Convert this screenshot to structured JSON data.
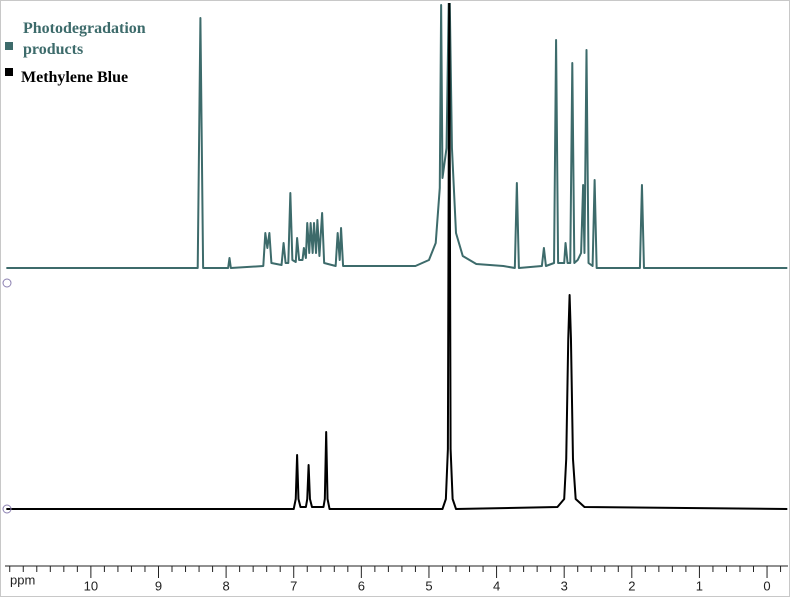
{
  "chart_data": {
    "type": "line",
    "xlabel": "ppm",
    "xlim": [
      11.27,
      -0.31
    ],
    "xticks": [
      10,
      9,
      8,
      7,
      6,
      5,
      4,
      3,
      2,
      1,
      0
    ],
    "xminorticks": [
      11.2,
      11,
      10.8,
      10.6,
      10.4,
      10.2,
      9.8,
      9.6,
      9.4,
      9.2,
      8.8,
      8.6,
      8.4,
      8.2,
      7.8,
      7.6,
      7.4,
      7.2,
      6.8,
      6.6,
      6.4,
      6.2,
      5.8,
      5.6,
      5.4,
      5.2,
      4.8,
      4.6,
      4.4,
      4.2,
      3.8,
      3.6,
      3.4,
      3.2,
      2.8,
      2.6,
      2.4,
      2.2,
      1.8,
      1.6,
      1.4,
      1.2,
      0.8,
      0.6,
      0.4,
      0.2,
      -0.2
    ],
    "series": [
      {
        "name": "Photodegradation products",
        "color": "#3d6b6b",
        "x": [
          11.25,
          8.42,
          8.38,
          8.34,
          7.97,
          7.95,
          7.93,
          7.45,
          7.42,
          7.39,
          7.36,
          7.33,
          7.18,
          7.15,
          7.12,
          7.08,
          7.05,
          7.02,
          6.97,
          6.95,
          6.92,
          6.87,
          6.85,
          6.82,
          6.8,
          6.77,
          6.75,
          6.72,
          6.7,
          6.67,
          6.65,
          6.62,
          6.58,
          6.55,
          6.38,
          6.35,
          6.32,
          6.3,
          6.27,
          5.2,
          5.0,
          4.9,
          4.84,
          4.82,
          4.8,
          4.74,
          4.7,
          4.66,
          4.6,
          4.5,
          4.3,
          3.9,
          3.73,
          3.7,
          3.67,
          3.33,
          3.3,
          3.27,
          3.15,
          3.12,
          3.09,
          3.0,
          2.98,
          2.95,
          2.91,
          2.88,
          2.85,
          2.8,
          2.75,
          2.72,
          2.7,
          2.67,
          2.64,
          2.58,
          2.55,
          2.52,
          1.88,
          1.85,
          1.82,
          -0.3
        ],
        "values": [
          0,
          0,
          250,
          0,
          0,
          10,
          0,
          2,
          35,
          20,
          35,
          5,
          3,
          25,
          5,
          5,
          75,
          8,
          6,
          30,
          8,
          8,
          20,
          10,
          45,
          15,
          45,
          15,
          45,
          15,
          48,
          12,
          55,
          5,
          2,
          35,
          8,
          40,
          2,
          2,
          8,
          25,
          80,
          263,
          90,
          120,
          300,
          120,
          35,
          12,
          4,
          2,
          0,
          85,
          0,
          2,
          20,
          2,
          5,
          228,
          5,
          5,
          25,
          5,
          5,
          205,
          5,
          8,
          15,
          83,
          15,
          218,
          5,
          2,
          88,
          0,
          0,
          83,
          0,
          0
        ]
      },
      {
        "name": "Methylene Blue",
        "color": "#000000",
        "x": [
          11.25,
          7.0,
          6.97,
          6.95,
          6.93,
          6.9,
          6.82,
          6.8,
          6.78,
          6.76,
          6.73,
          6.56,
          6.54,
          6.52,
          6.5,
          6.47,
          4.8,
          4.75,
          4.72,
          4.7,
          4.68,
          4.65,
          4.6,
          3.1,
          3.0,
          2.97,
          2.94,
          2.92,
          2.9,
          2.87,
          2.83,
          2.7,
          -0.3
        ],
        "values": [
          0,
          0,
          10,
          54,
          10,
          2,
          2,
          10,
          44,
          10,
          2,
          2,
          10,
          77,
          10,
          0,
          0,
          10,
          60,
          520,
          60,
          10,
          0,
          2,
          10,
          50,
          170,
          214,
          170,
          50,
          10,
          2,
          0
        ]
      }
    ]
  }
}
